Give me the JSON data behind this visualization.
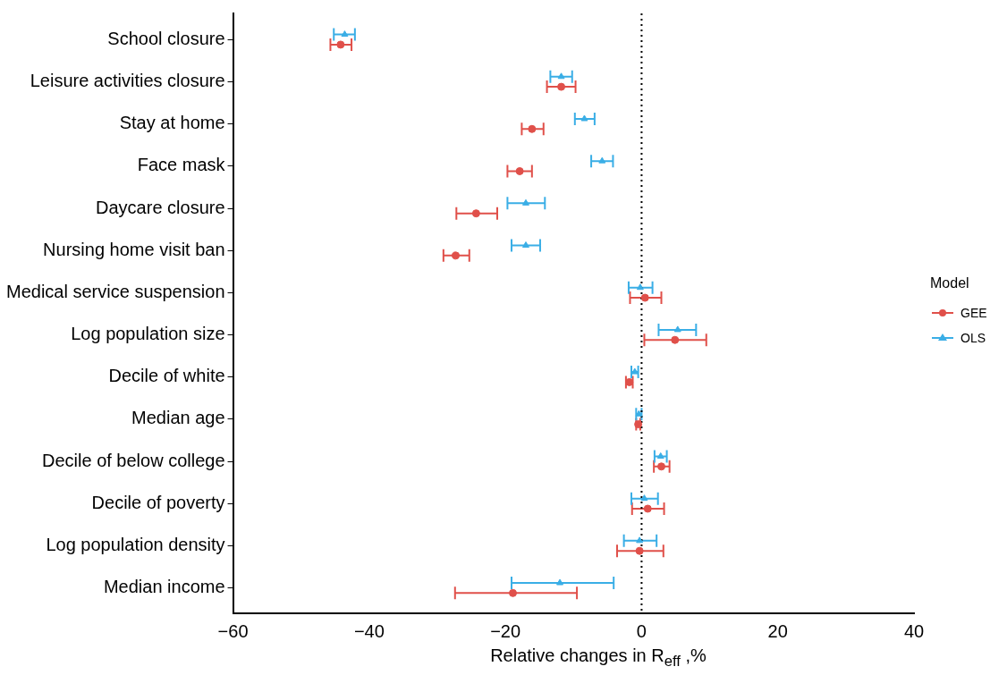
{
  "chart_data": {
    "type": "scatter",
    "orientation": "horizontal",
    "xlabel": "Relative changes in R$_{eff}$ ,%",
    "legend_title": "Model",
    "legend": "right",
    "categories": [
      "School closure",
      "Leisure activities closure",
      "Stay at home",
      "Face mask",
      "Daycare closure",
      "Nursing home visit ban",
      "Medical service suspension",
      "Log population size",
      "Decile of white",
      "Median age",
      "Decile of below college",
      "Decile of poverty",
      "Log population density",
      "Median income"
    ],
    "series": [
      {
        "name": "GEE",
        "color": "#e0504a",
        "marker": "circle",
        "values": [
          -44.2,
          -11.8,
          -16.1,
          -17.9,
          -24.3,
          -27.3,
          0.5,
          4.9,
          -1.8,
          -0.5,
          2.9,
          0.9,
          -0.3,
          -18.9
        ],
        "errors": [
          [
            -45.7,
            -42.6
          ],
          [
            -13.9,
            -9.7
          ],
          [
            -17.6,
            -14.4
          ],
          [
            -19.7,
            -16.1
          ],
          [
            -27.2,
            -21.2
          ],
          [
            -29.1,
            -25.3
          ],
          [
            -1.7,
            2.9
          ],
          [
            0.4,
            9.5
          ],
          [
            -2.3,
            -1.3
          ],
          [
            -0.8,
            -0.2
          ],
          [
            1.8,
            4.1
          ],
          [
            -1.4,
            3.3
          ],
          [
            -3.6,
            3.2
          ],
          [
            -27.4,
            -9.5
          ]
        ]
      },
      {
        "name": "OLS",
        "color": "#3aaee6",
        "marker": "triangle",
        "values": [
          -43.6,
          -11.8,
          -8.4,
          -5.8,
          -17.0,
          -17.0,
          -0.2,
          5.3,
          -1.0,
          -0.4,
          2.8,
          0.4,
          -0.3,
          -12.0
        ],
        "errors": [
          [
            -45.2,
            -42.1
          ],
          [
            -13.4,
            -10.2
          ],
          [
            -9.8,
            -6.9
          ],
          [
            -7.4,
            -4.2
          ],
          [
            -19.7,
            -14.2
          ],
          [
            -19.1,
            -14.9
          ],
          [
            -1.9,
            1.6
          ],
          [
            2.5,
            8.0
          ],
          [
            -1.5,
            -0.5
          ],
          [
            -0.8,
            0.0
          ],
          [
            1.9,
            3.7
          ],
          [
            -1.5,
            2.4
          ],
          [
            -2.6,
            2.2
          ],
          [
            -19.1,
            -4.1
          ]
        ]
      }
    ],
    "xlim": [
      -60,
      40
    ],
    "xticks": [
      -60,
      -40,
      -20,
      0,
      20,
      40
    ],
    "ref_lines": [
      {
        "axis": "x",
        "value": 0,
        "color": "#000000",
        "line_style": "dotted"
      }
    ]
  }
}
